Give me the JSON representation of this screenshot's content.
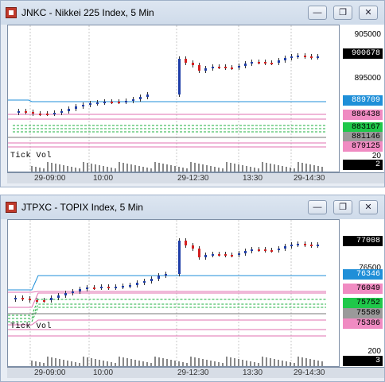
{
  "windows": [
    {
      "title": "JNKC - Nikkei 225 Index, 5 Min",
      "buttons": {
        "minimize": "—",
        "restore": "❐",
        "close": "✕"
      },
      "axis": {
        "labels": [
          "905000",
          "895000",
          "20"
        ],
        "tags": [
          {
            "text": "900678",
            "bg": "#000000",
            "fg": "#ffffff"
          },
          {
            "text": "889709",
            "bg": "#1f8fd8",
            "fg": "#ffffff"
          },
          {
            "text": "886438",
            "bg": "#f08bc2",
            "fg": "#000000"
          },
          {
            "text": "883167",
            "bg": "#1fc84a",
            "fg": "#000000"
          },
          {
            "text": "881146",
            "bg": "#9a9a9a",
            "fg": "#000000"
          },
          {
            "text": "879125",
            "bg": "#f08bc2",
            "fg": "#000000"
          },
          {
            "text": "2",
            "bg": "#000000",
            "fg": "#ffffff"
          }
        ]
      },
      "volume_label": "Tick Vol",
      "time_labels": [
        "29-09:00",
        "10:00",
        "29-12:30",
        "13:30",
        "29-14:30"
      ]
    },
    {
      "title": "JTPXC - TOPIX Index, 5 Min",
      "buttons": {
        "minimize": "—",
        "restore": "❐",
        "close": "✕"
      },
      "axis": {
        "labels": [
          "76500",
          "200"
        ],
        "tags": [
          {
            "text": "77008",
            "bg": "#000000",
            "fg": "#ffffff"
          },
          {
            "text": "76346",
            "bg": "#1f8fd8",
            "fg": "#ffffff"
          },
          {
            "text": "76049",
            "bg": "#f08bc2",
            "fg": "#000000"
          },
          {
            "text": "75752",
            "bg": "#1fc84a",
            "fg": "#000000"
          },
          {
            "text": "75589",
            "bg": "#9a9a9a",
            "fg": "#000000"
          },
          {
            "text": "75386",
            "bg": "#f08bc2",
            "fg": "#000000"
          },
          {
            "text": "3",
            "bg": "#000000",
            "fg": "#ffffff"
          }
        ]
      },
      "volume_label": "Tick Vol",
      "time_labels": [
        "29-09:00",
        "10:00",
        "29-12:30",
        "13:30",
        "29-14:30"
      ]
    }
  ],
  "colors": {
    "up": "#1f3ea8",
    "down": "#d42020",
    "grid": "#c9c9c9",
    "blue_line": "#1f8fd8",
    "pink_line": "#e070b0",
    "green_line": "#1fb040",
    "gray_line": "#777777"
  }
}
